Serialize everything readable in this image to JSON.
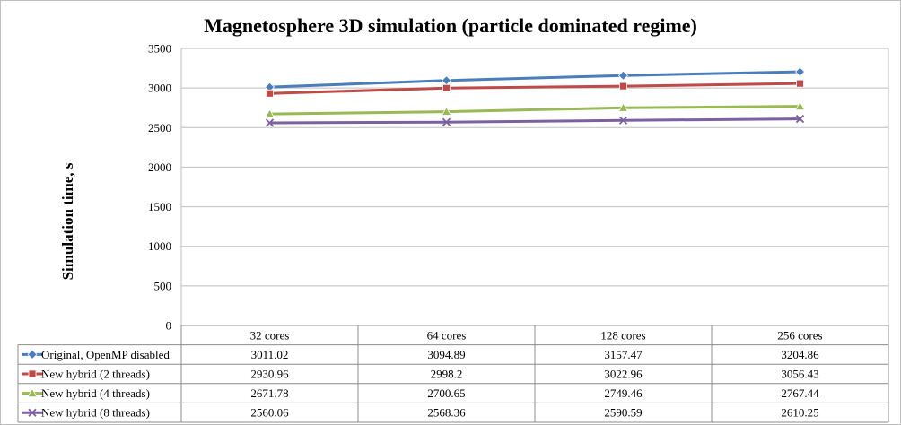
{
  "chart_data": {
    "type": "line",
    "title": "Magnetosphere 3D simulation (particle dominated regime)",
    "xlabel": "",
    "ylabel": "Simulation time, s",
    "ylim": [
      0,
      3500
    ],
    "yticks": [
      0,
      500,
      1000,
      1500,
      2000,
      2500,
      3000,
      3500
    ],
    "grid": true,
    "legend": "data-table-left",
    "categories": [
      "32 cores",
      "64 cores",
      "128 cores",
      "256 cores"
    ],
    "series": [
      {
        "name": "Original, OpenMP disabled",
        "values": [
          3011.02,
          3094.89,
          3157.47,
          3204.86
        ],
        "labels": [
          "3011.02",
          "3094.89",
          "3157.47",
          "3204.86"
        ],
        "color": "#4a7ebb",
        "marker": "diamond"
      },
      {
        "name": "New hybrid (2 threads)",
        "values": [
          2930.96,
          2998.2,
          3022.96,
          3056.43
        ],
        "labels": [
          "2930.96",
          "2998.2",
          "3022.96",
          "3056.43"
        ],
        "color": "#be4b48",
        "marker": "square"
      },
      {
        "name": "New hybrid (4 threads)",
        "values": [
          2671.78,
          2700.65,
          2749.46,
          2767.44
        ],
        "labels": [
          "2671.78",
          "2700.65",
          "2749.46",
          "2767.44"
        ],
        "color": "#98b954",
        "marker": "triangle"
      },
      {
        "name": "New hybrid (8 threads)",
        "values": [
          2560.06,
          2568.36,
          2590.59,
          2610.25
        ],
        "labels": [
          "2560.06",
          "2568.36",
          "2590.59",
          "2610.25"
        ],
        "color": "#7d60a0",
        "marker": "x"
      }
    ]
  }
}
